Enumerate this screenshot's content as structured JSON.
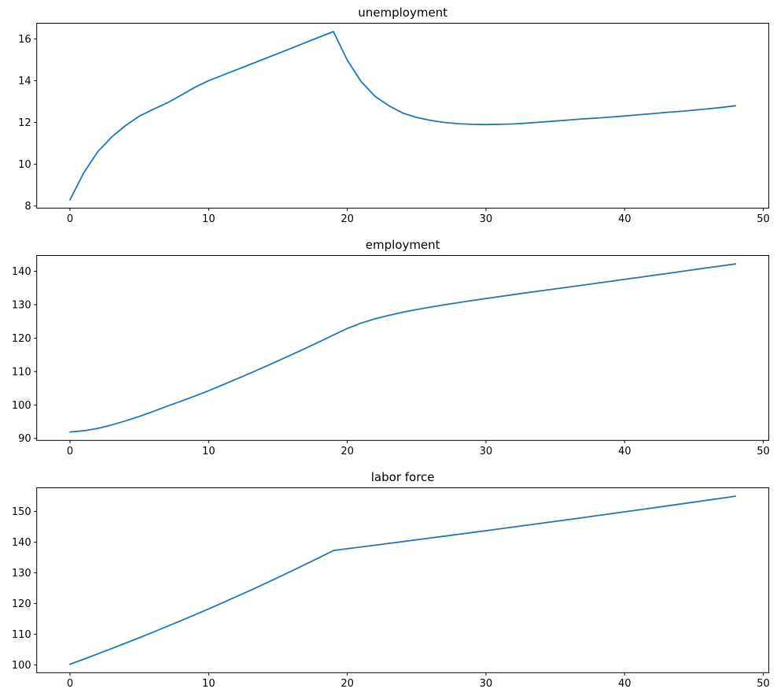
{
  "figure": {
    "background_color": "#ffffff",
    "text_color": "#000000",
    "accent_color": "#1f77b4"
  },
  "chart_data": [
    {
      "id": "unemployment",
      "type": "line",
      "title": "unemployment",
      "xlabel": "",
      "ylabel": "",
      "legend": "none",
      "grid": false,
      "line_color": "#1f77b4",
      "x": [
        0,
        1,
        2,
        3,
        4,
        5,
        6,
        7,
        8,
        9,
        10,
        11,
        12,
        13,
        14,
        15,
        16,
        17,
        18,
        19,
        20,
        21,
        22,
        23,
        24,
        25,
        26,
        27,
        28,
        29,
        30,
        31,
        32,
        33,
        34,
        35,
        36,
        37,
        38,
        39,
        40,
        41,
        42,
        43,
        44,
        45,
        46,
        47,
        48
      ],
      "values": [
        8.3,
        9.6,
        10.6,
        11.3,
        11.85,
        12.3,
        12.63,
        12.93,
        13.3,
        13.68,
        14.0,
        14.26,
        14.52,
        14.78,
        15.04,
        15.3,
        15.56,
        15.83,
        16.09,
        16.35,
        14.98,
        13.95,
        13.25,
        12.8,
        12.45,
        12.24,
        12.1,
        12.0,
        11.94,
        11.91,
        11.9,
        11.91,
        11.93,
        11.97,
        12.02,
        12.07,
        12.12,
        12.17,
        12.21,
        12.26,
        12.31,
        12.37,
        12.42,
        12.48,
        12.53,
        12.59,
        12.65,
        12.72,
        12.8
      ],
      "xticks": [
        0,
        10,
        20,
        30,
        40,
        50
      ],
      "yticks": [
        8,
        10,
        12,
        14,
        16
      ],
      "xlim": [
        -2.4,
        50.4
      ],
      "ylim": [
        7.9,
        16.75
      ]
    },
    {
      "id": "employment",
      "type": "line",
      "title": "employment",
      "xlabel": "",
      "ylabel": "",
      "legend": "none",
      "grid": false,
      "line_color": "#1f77b4",
      "x": [
        0,
        1,
        2,
        3,
        4,
        5,
        6,
        7,
        8,
        9,
        10,
        11,
        12,
        13,
        14,
        15,
        16,
        17,
        18,
        19,
        20,
        21,
        22,
        23,
        24,
        25,
        26,
        27,
        28,
        29,
        30,
        31,
        32,
        33,
        34,
        35,
        36,
        37,
        38,
        39,
        40,
        41,
        42,
        43,
        44,
        45,
        46,
        47,
        48
      ],
      "values": [
        91.9,
        92.27,
        92.98,
        94.01,
        95.22,
        96.56,
        98.05,
        99.6,
        101.11,
        102.64,
        104.26,
        105.98,
        107.73,
        109.51,
        111.33,
        113.18,
        115.07,
        116.98,
        118.94,
        120.94,
        122.89,
        124.49,
        125.77,
        126.81,
        127.74,
        128.54,
        129.27,
        129.96,
        130.61,
        131.24,
        131.85,
        132.44,
        133.03,
        133.6,
        134.16,
        134.72,
        135.28,
        135.85,
        136.43,
        137.0,
        137.58,
        138.15,
        138.73,
        139.3,
        139.89,
        140.47,
        141.05,
        141.62,
        142.19
      ],
      "xticks": [
        0,
        10,
        20,
        30,
        40,
        50
      ],
      "yticks": [
        90,
        100,
        110,
        120,
        130,
        140
      ],
      "xlim": [
        -2.4,
        50.4
      ],
      "ylim": [
        89.39,
        144.71
      ]
    },
    {
      "id": "labor-force",
      "type": "line",
      "title": "labor force",
      "xlabel": "",
      "ylabel": "",
      "legend": "none",
      "grid": false,
      "line_color": "#1f77b4",
      "x": [
        0,
        1,
        2,
        3,
        4,
        5,
        6,
        7,
        8,
        9,
        10,
        11,
        12,
        13,
        14,
        15,
        16,
        17,
        18,
        19,
        20,
        21,
        22,
        23,
        24,
        25,
        26,
        27,
        28,
        29,
        30,
        31,
        32,
        33,
        34,
        35,
        36,
        37,
        38,
        39,
        40,
        41,
        42,
        43,
        44,
        45,
        46,
        47,
        48
      ],
      "values": [
        100.2,
        101.87,
        103.58,
        105.31,
        107.07,
        108.86,
        110.68,
        112.53,
        114.41,
        116.32,
        118.26,
        120.24,
        122.25,
        124.29,
        126.37,
        128.48,
        130.63,
        132.81,
        135.03,
        137.29,
        137.87,
        138.44,
        139.02,
        139.61,
        140.19,
        140.78,
        141.37,
        141.96,
        142.55,
        143.15,
        143.75,
        144.35,
        144.96,
        145.57,
        146.18,
        146.79,
        147.4,
        148.02,
        148.64,
        149.26,
        149.89,
        150.52,
        151.15,
        151.78,
        152.42,
        153.06,
        153.7,
        154.34,
        154.99
      ],
      "xticks": [
        0,
        10,
        20,
        30,
        40,
        50
      ],
      "yticks": [
        100,
        110,
        120,
        130,
        140,
        150
      ],
      "xlim": [
        -2.4,
        50.4
      ],
      "ylim": [
        97.46,
        157.73
      ]
    }
  ]
}
